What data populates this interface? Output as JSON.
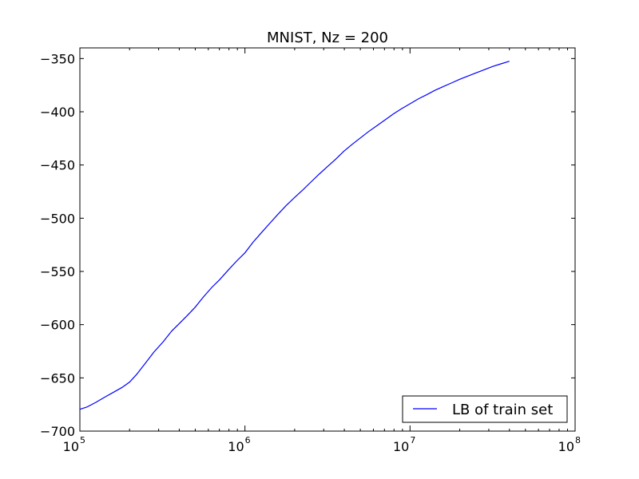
{
  "chart_data": {
    "type": "line",
    "title": "MNIST, Nz = 200",
    "xlabel": "",
    "ylabel": "",
    "xscale": "log",
    "xlim": [
      100000,
      100000000
    ],
    "ylim": [
      -700,
      -340
    ],
    "x_ticks": [
      {
        "value": 100000,
        "base": "10",
        "exp": "5"
      },
      {
        "value": 1000000,
        "base": "10",
        "exp": "6"
      },
      {
        "value": 10000000,
        "base": "10",
        "exp": "7"
      },
      {
        "value": 100000000,
        "base": "10",
        "exp": "8"
      }
    ],
    "y_ticks": [
      -350,
      -400,
      -450,
      -500,
      -550,
      -600,
      -650,
      -700
    ],
    "y_tick_labels": [
      "−350",
      "−400",
      "−450",
      "−500",
      "−550",
      "−600",
      "−650",
      "−700"
    ],
    "grid": false,
    "legend_position": "lower-right",
    "series": [
      {
        "name": "LB of train set",
        "color": "#0000ff",
        "x": [
          100000,
          110000,
          125000,
          140000,
          160000,
          180000,
          200000,
          220000,
          250000,
          280000,
          320000,
          360000,
          400000,
          450000,
          500000,
          560000,
          630000,
          700000,
          800000,
          900000,
          1000000,
          1120000,
          1260000,
          1410000,
          1580000,
          1780000,
          2000000,
          2240000,
          2510000,
          2820000,
          3160000,
          3550000,
          3980000,
          4470000,
          5010000,
          5620000,
          6310000,
          7080000,
          7940000,
          8910000,
          10000000,
          11200000,
          12600000,
          14100000,
          15800000,
          17800000,
          20000000,
          22400000,
          25100000,
          28200000,
          31600000,
          35500000,
          40000000
        ],
        "y": [
          -679.5,
          -677.5,
          -673,
          -668.5,
          -663.5,
          -659,
          -654,
          -647,
          -636,
          -626,
          -616,
          -606,
          -599,
          -591,
          -583.5,
          -574,
          -565,
          -558,
          -548,
          -539.5,
          -532.5,
          -522.5,
          -513.5,
          -505,
          -496.5,
          -488,
          -480.5,
          -473.5,
          -466,
          -458.5,
          -451.5,
          -444.5,
          -437,
          -430.5,
          -424.5,
          -418.5,
          -413,
          -407.5,
          -402,
          -397,
          -392.5,
          -388,
          -384,
          -380,
          -376.5,
          -373,
          -369.5,
          -366.5,
          -363.5,
          -360.5,
          -357.5,
          -355,
          -352.5
        ]
      }
    ]
  }
}
